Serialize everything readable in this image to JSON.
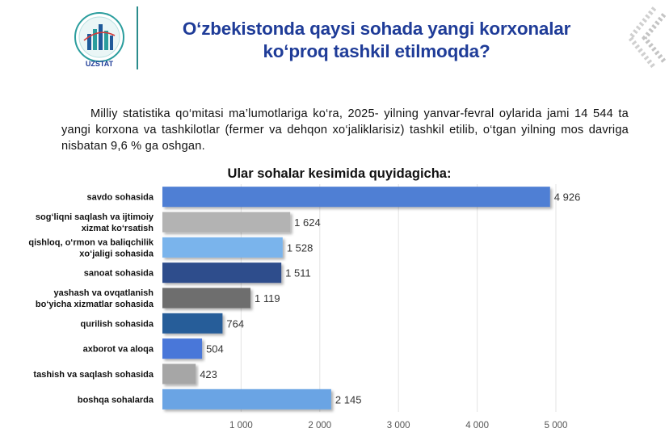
{
  "header": {
    "logo_text": "UZSTAT",
    "title_line1": "O‘zbekistonda qaysi sohada yangi korxonalar",
    "title_line2": "ko‘proq tashkil etilmoqda?"
  },
  "intro": "Milliy statistika qo‘mitasi ma’lumotlariga ko‘ra, 2025- yilning yanvar-fevral oylarida jami 14 544 ta yangi korxona va tashkilotlar (fermer va dehqon xo‘jaliklarisiz) tashkil etilib, o‘tgan yilning mos davriga nisbatan 9,6 % ga oshgan.",
  "chart_data": {
    "type": "bar",
    "orientation": "horizontal",
    "title": "Ular sohalar kesimida quyidagicha:",
    "categories": [
      [
        "savdo sohasida"
      ],
      [
        "sog‘liqni saqlash va ijtimoiy",
        "xizmat ko‘rsatish"
      ],
      [
        "qishloq, o‘rmon va baliqchilik",
        "xo‘jaligi sohasida"
      ],
      [
        "sanoat sohasida"
      ],
      [
        "yashash va ovqatlanish",
        "bo‘yicha xizmatlar sohasida"
      ],
      [
        "qurilish sohasida"
      ],
      [
        "axborot va aloqa"
      ],
      [
        "tashish va saqlash sohasida"
      ],
      [
        "boshqa sohalarda"
      ]
    ],
    "values": [
      4926,
      1624,
      1528,
      1511,
      1119,
      764,
      504,
      423,
      2145
    ],
    "value_labels": [
      "4 926",
      "1 624",
      "1 528",
      "1 511",
      "1 119",
      "764",
      "504",
      "423",
      "2 145"
    ],
    "colors": [
      "#4f7fd4",
      "#b3b3b3",
      "#7ab4ec",
      "#2f4d8c",
      "#6e6e6e",
      "#275d99",
      "#4a77d9",
      "#a6a6a6",
      "#6aa4e4"
    ],
    "xlim": [
      0,
      5000
    ],
    "xticks": [
      1000,
      2000,
      3000,
      4000,
      5000
    ],
    "xtick_labels": [
      "1 000",
      "2 000",
      "3 000",
      "4 000",
      "5 000"
    ],
    "grid": true
  }
}
